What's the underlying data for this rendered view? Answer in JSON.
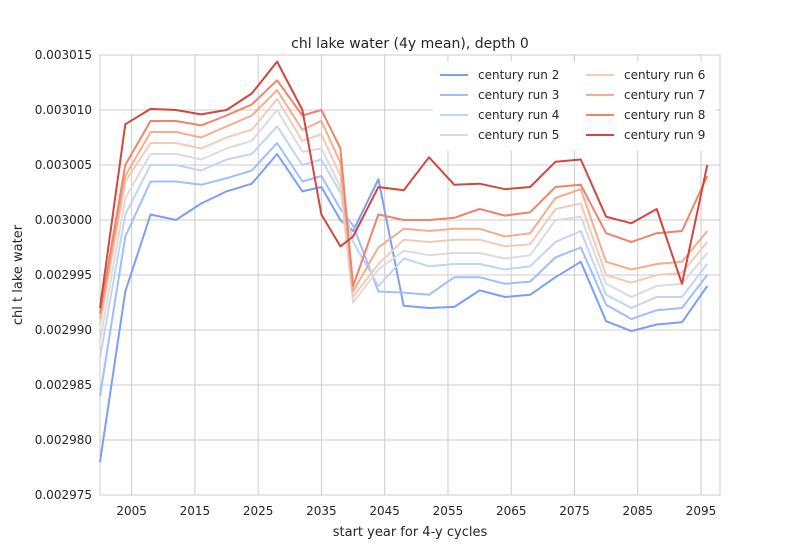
{
  "chart_data": {
    "type": "line",
    "title": "chl lake water (4y mean), depth 0",
    "xlabel": "start year for 4-y cycles",
    "ylabel": "chl t lake water",
    "xlim": [
      2000,
      2098
    ],
    "ylim": [
      0.002975,
      0.003015
    ],
    "xticks": [
      2005,
      2015,
      2025,
      2035,
      2045,
      2055,
      2065,
      2075,
      2085,
      2095
    ],
    "yticks": [
      0.002975,
      0.00298,
      0.002985,
      0.00299,
      0.002995,
      0.003,
      0.003005,
      0.00301,
      0.003015
    ],
    "ytick_labels": [
      "0.002975",
      "0.002980",
      "0.002985",
      "0.002990",
      "0.002995",
      "0.003000",
      "0.003005",
      "0.003010",
      "0.003015"
    ],
    "grid": true,
    "legend_position": "top-right",
    "x": [
      2000,
      2004,
      2008,
      2012,
      2016,
      2020,
      2024,
      2028,
      2032,
      2035,
      2038,
      2040,
      2044,
      2048,
      2052,
      2056,
      2060,
      2064,
      2068,
      2072,
      2076,
      2080,
      2084,
      2088,
      2092,
      2096
    ],
    "series": [
      {
        "name": "century run 2",
        "color": "#7b9ff9",
        "values": [
          0.002978,
          0.0029935,
          0.0030005,
          0.003,
          0.0030015,
          0.0030026,
          0.0030033,
          0.003006,
          0.0030026,
          0.003003,
          0.003,
          0.002999,
          0.0030037,
          0.0029922,
          0.002992,
          0.0029921,
          0.0029936,
          0.002993,
          0.0029932,
          0.0029948,
          0.0029962,
          0.0029908,
          0.0029899,
          0.0029905,
          0.0029907,
          0.002994
        ]
      },
      {
        "name": "century run 3",
        "color": "#9ebeff",
        "values": [
          0.002984,
          0.0029985,
          0.0030035,
          0.0030035,
          0.0030032,
          0.0030038,
          0.0030045,
          0.003007,
          0.0030035,
          0.003004,
          0.003001,
          0.0029995,
          0.0029935,
          0.0029934,
          0.0029932,
          0.0029948,
          0.0029948,
          0.0029942,
          0.0029944,
          0.0029966,
          0.0029975,
          0.0029923,
          0.002991,
          0.0029918,
          0.002992,
          0.002995
        ]
      },
      {
        "name": "century run 4",
        "color": "#c0d4f5",
        "values": [
          0.0029875,
          0.0030005,
          0.003005,
          0.003005,
          0.0030045,
          0.0030055,
          0.003006,
          0.0030085,
          0.003005,
          0.0030055,
          0.0030025,
          0.002998,
          0.002994,
          0.0029965,
          0.0029958,
          0.002996,
          0.002996,
          0.0029955,
          0.0029958,
          0.002998,
          0.002999,
          0.0029932,
          0.002992,
          0.002993,
          0.002993,
          0.002996
        ]
      },
      {
        "name": "century run 5",
        "color": "#dddcdc",
        "values": [
          0.002989,
          0.003002,
          0.003006,
          0.003006,
          0.0030055,
          0.0030065,
          0.0030072,
          0.00301,
          0.0030062,
          0.0030065,
          0.003003,
          0.0029925,
          0.0029955,
          0.0029972,
          0.0029968,
          0.002997,
          0.002997,
          0.0029965,
          0.0029968,
          0.003,
          0.0030003,
          0.0029942,
          0.002993,
          0.002994,
          0.0029942,
          0.002997
        ]
      },
      {
        "name": "century run 6",
        "color": "#f2cbb7",
        "values": [
          0.0029905,
          0.0030035,
          0.003007,
          0.003007,
          0.0030065,
          0.0030075,
          0.0030082,
          0.003011,
          0.0030072,
          0.0030078,
          0.003004,
          0.002993,
          0.002996,
          0.0029982,
          0.002998,
          0.0029982,
          0.0029982,
          0.0029976,
          0.0029978,
          0.003001,
          0.0030015,
          0.002995,
          0.0029943,
          0.002995,
          0.0029952,
          0.002998
        ]
      },
      {
        "name": "century run 7",
        "color": "#f7ac8e",
        "values": [
          0.002991,
          0.003004,
          0.003008,
          0.003008,
          0.0030075,
          0.0030085,
          0.0030095,
          0.0030118,
          0.0030082,
          0.003009,
          0.0030052,
          0.0029935,
          0.0029975,
          0.0029992,
          0.002999,
          0.0029992,
          0.0029992,
          0.0029985,
          0.0029988,
          0.003002,
          0.0030028,
          0.0029962,
          0.0029955,
          0.002996,
          0.0029962,
          0.002999
        ]
      },
      {
        "name": "century run 8",
        "color": "#ee8468",
        "values": [
          0.0029915,
          0.003005,
          0.003009,
          0.003009,
          0.0030086,
          0.0030095,
          0.0030105,
          0.0030127,
          0.0030095,
          0.00301,
          0.0030065,
          0.002994,
          0.0030005,
          0.003,
          0.003,
          0.0030002,
          0.003001,
          0.0030004,
          0.0030007,
          0.003003,
          0.0030032,
          0.0029988,
          0.002998,
          0.0029988,
          0.002999,
          0.003004
        ]
      },
      {
        "name": "century run 9",
        "color": "#d0473d",
        "values": [
          0.002992,
          0.0030087,
          0.0030101,
          0.00301,
          0.0030096,
          0.00301,
          0.0030115,
          0.0030144,
          0.00301,
          0.0030005,
          0.0029976,
          0.0029985,
          0.003003,
          0.0030027,
          0.0030057,
          0.0030032,
          0.0030033,
          0.0030028,
          0.003003,
          0.0030053,
          0.0030055,
          0.0030003,
          0.0029997,
          0.003001,
          0.0029942,
          0.003005
        ]
      }
    ]
  }
}
